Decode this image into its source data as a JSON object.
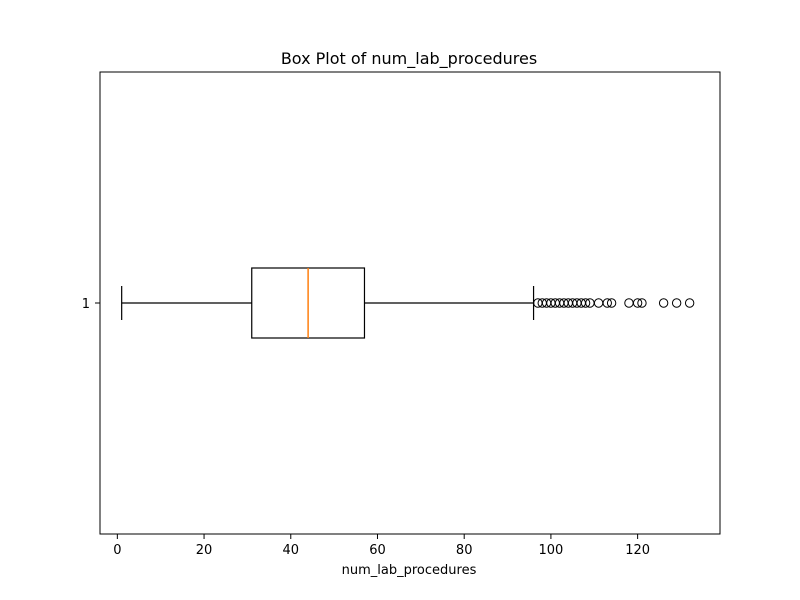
{
  "chart_data": {
    "type": "box",
    "title": "Box Plot of num_lab_procedures",
    "xlabel": "num_lab_procedures",
    "ylabel": "",
    "orientation": "horizontal",
    "xlim": [
      -4,
      139
    ],
    "x_ticks": [
      0,
      20,
      40,
      60,
      80,
      100,
      120
    ],
    "categories": [
      "1"
    ],
    "grid": false,
    "colors": {
      "box": "#000000",
      "median": "#ff7f0e",
      "whisker": "#000000",
      "outlier": "#000000"
    },
    "series": [
      {
        "category": "1",
        "whisker_low": 1,
        "q1": 31,
        "median": 44,
        "q3": 57,
        "whisker_high": 96,
        "outliers": [
          97,
          98,
          99,
          100,
          101,
          102,
          103,
          104,
          105,
          106,
          107,
          108,
          109,
          111,
          113,
          114,
          118,
          120,
          121,
          126,
          129,
          132
        ]
      }
    ]
  }
}
